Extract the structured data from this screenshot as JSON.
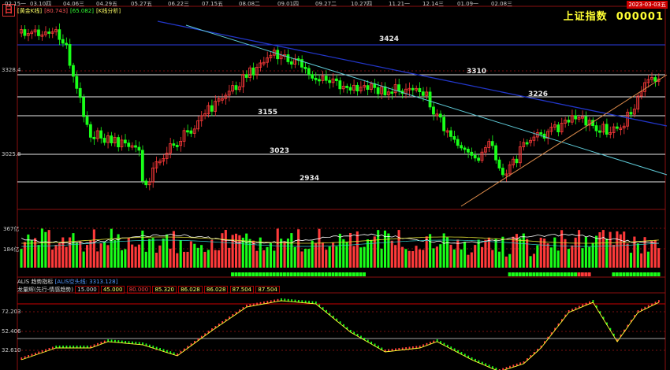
{
  "header": {
    "period_icon": "日",
    "title": "上证指数",
    "code": "000001",
    "date_badge": "2023-03-03五",
    "dates": [
      "02.15一",
      "03.10四",
      "04.06三",
      "04.29五",
      "05.27五",
      "06.22三",
      "07.15五",
      "08.08二",
      "09.01四",
      "09.27二",
      "10.27四",
      "11.21一",
      "12.14三",
      "01.09一",
      "02.08三"
    ]
  },
  "main_panel": {
    "legend": {
      "name": "[黄金K线]",
      "v1": "[80.743]",
      "v2": "[65.082]",
      "analysis": "[K线分析]"
    },
    "y_labels": [
      "3328.4",
      "3025.8"
    ],
    "levels": [
      "3424",
      "3310",
      "3226",
      "3155",
      "3023",
      "2934"
    ]
  },
  "volume_panel": {
    "y_labels": [
      "367亿",
      "184亿"
    ]
  },
  "indicator_panel": {
    "top_legend": {
      "name": "ALIS 趋势指标",
      "value": "[ALIS空头线: 3313.128]"
    },
    "legend": {
      "name": "龙量辉(先行-情感趋势)",
      "values": [
        "15.000",
        "45.000",
        "80.000",
        "85.320",
        "86.028",
        "86.028",
        "87.504",
        "87.504"
      ]
    },
    "y_labels": [
      "72.203",
      "52.406",
      "32.610"
    ]
  },
  "colors": {
    "up": "#ff3a3a",
    "down": "#19ff19",
    "accent": "#ffff33",
    "trend_blue": "#2236c8",
    "trend_cyan": "#5ec9d6",
    "trend_orange": "#d9894a"
  }
}
